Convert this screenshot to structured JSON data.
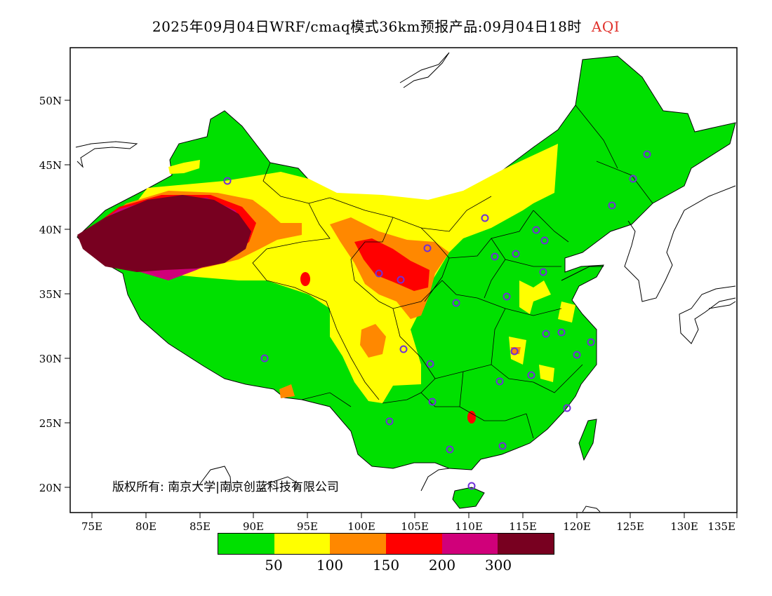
{
  "title": {
    "main": "2025年09月04日WRF/cmaq模式36km预报产品:09月04日18时",
    "variable": "AQI"
  },
  "axes": {
    "lat_labels": [
      "50N",
      "45N",
      "40N",
      "35N",
      "30N",
      "25N",
      "20N"
    ],
    "lon_labels": [
      "75E",
      "80E",
      "85E",
      "90E",
      "95E",
      "100E",
      "105E",
      "110E",
      "115E",
      "120E",
      "125E",
      "130E",
      "135E"
    ]
  },
  "legend": {
    "colors": [
      "#00e000",
      "#ffff00",
      "#ff8800",
      "#ff0000",
      "#d0007a",
      "#780020"
    ],
    "labels": [
      "50",
      "100",
      "150",
      "200",
      "300"
    ]
  },
  "copyright": "版权所有: 南京大学|南京创蓝科技有限公司"
}
